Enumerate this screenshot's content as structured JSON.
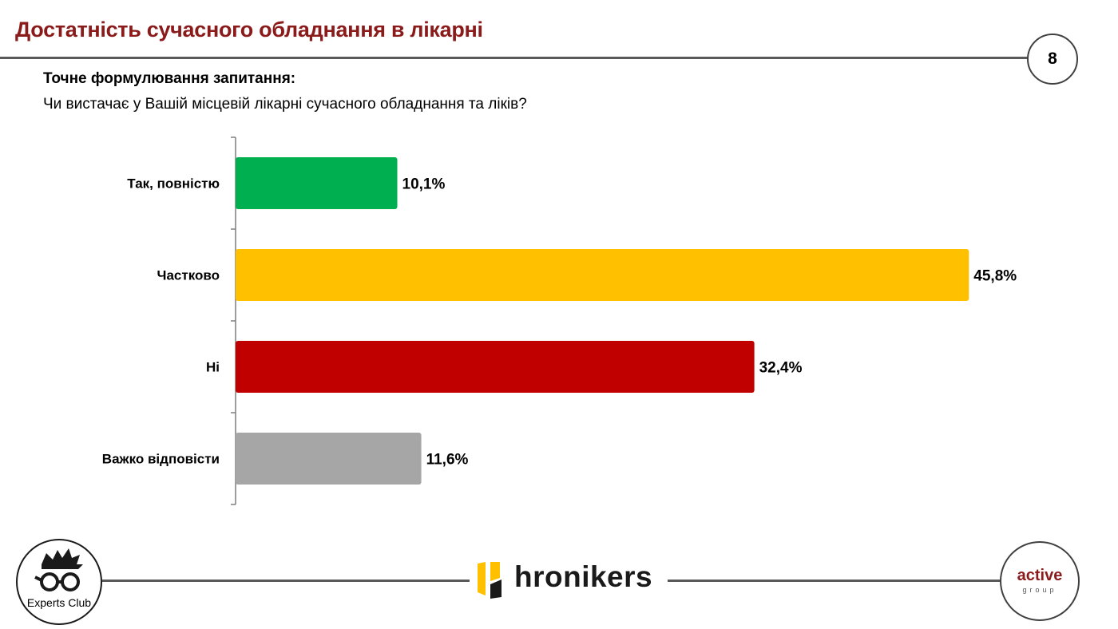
{
  "header": {
    "title": "Достатність сучасного обладнання в лікарні",
    "page_number": "8"
  },
  "question": {
    "heading": "Точне формулювання запитання:",
    "text": "Чи вистачає у Вашій місцевій лікарні сучасного обладнання та ліків?"
  },
  "chart_data": {
    "type": "bar",
    "orientation": "horizontal",
    "title": "",
    "xlabel": "",
    "ylabel": "",
    "xlim": [
      0,
      50
    ],
    "grid": false,
    "legend": "none",
    "categories": [
      "Так, повністю",
      "Частково",
      "Ні",
      "Важко відповісти"
    ],
    "values": [
      10.1,
      45.8,
      32.4,
      11.6
    ],
    "value_labels": [
      "10,1%",
      "45,8%",
      "32,4%",
      "11,6%"
    ],
    "colors": [
      "#00b050",
      "#ffc000",
      "#c00000",
      "#a6a6a6"
    ]
  },
  "footer": {
    "left_logo": "Experts Club",
    "center_logo": "hronikers",
    "right_logo_main": "active",
    "right_logo_sub": "group"
  }
}
